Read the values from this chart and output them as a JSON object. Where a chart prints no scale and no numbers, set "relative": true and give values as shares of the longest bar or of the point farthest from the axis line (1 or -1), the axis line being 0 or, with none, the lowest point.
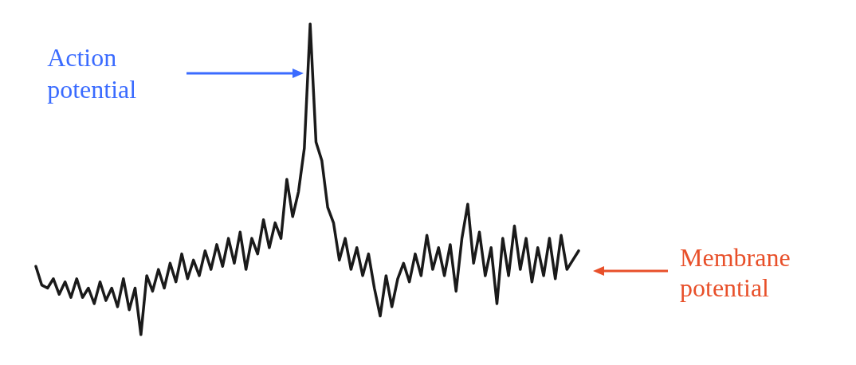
{
  "chart_data": {
    "type": "line",
    "relative": true,
    "color": "#1a1a1a",
    "grid": false,
    "line_style": "solid",
    "categories": [
      null,
      null,
      null,
      null,
      null,
      null,
      null,
      null,
      null,
      null,
      null,
      null,
      null,
      null,
      null,
      null,
      null,
      null,
      null,
      null,
      null,
      null,
      null,
      null,
      null,
      null,
      null,
      null,
      null,
      null,
      null,
      null,
      null,
      null,
      null,
      null,
      null,
      null,
      null,
      null,
      null,
      null,
      null,
      null,
      null,
      null,
      null,
      null,
      null,
      null,
      null,
      null,
      null,
      null,
      null,
      null,
      null,
      null,
      null,
      null,
      null,
      null,
      null,
      null,
      null,
      null,
      null,
      null,
      null,
      null,
      null,
      null,
      null,
      null,
      null,
      null,
      null,
      null,
      null,
      null,
      null,
      null,
      null,
      null,
      null,
      null,
      null,
      null,
      null,
      null,
      null,
      null,
      null,
      null
    ],
    "values": [
      0.22,
      0.16,
      0.15,
      0.18,
      0.13,
      0.17,
      0.12,
      0.18,
      0.12,
      0.15,
      0.1,
      0.17,
      0.11,
      0.15,
      0.09,
      0.18,
      0.08,
      0.15,
      0.0,
      0.19,
      0.14,
      0.21,
      0.15,
      0.23,
      0.17,
      0.26,
      0.18,
      0.24,
      0.19,
      0.27,
      0.21,
      0.29,
      0.22,
      0.31,
      0.23,
      0.33,
      0.21,
      0.31,
      0.26,
      0.37,
      0.28,
      0.36,
      0.31,
      0.5,
      0.38,
      0.46,
      0.6,
      1.0,
      0.62,
      0.56,
      0.41,
      0.36,
      0.24,
      0.31,
      0.21,
      0.28,
      0.19,
      0.26,
      0.15,
      0.06,
      0.19,
      0.09,
      0.18,
      0.23,
      0.17,
      0.26,
      0.19,
      0.32,
      0.21,
      0.28,
      0.19,
      0.29,
      0.14,
      0.31,
      0.42,
      0.23,
      0.33,
      0.19,
      0.28,
      0.1,
      0.31,
      0.19,
      0.35,
      0.21,
      0.31,
      0.17,
      0.28,
      0.19,
      0.31,
      0.18,
      0.32,
      0.21,
      0.24,
      0.27
    ],
    "annotations": [
      "Action potential",
      "Membrane potential"
    ]
  }
}
